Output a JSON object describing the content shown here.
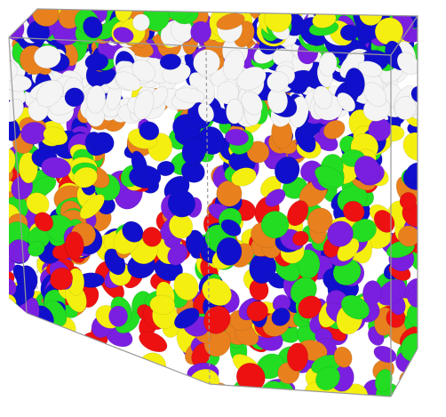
{
  "palette": {
    "white": "#f4f4f4",
    "orange": "#e8801e",
    "blue": "#1010cc",
    "green": "#22dd22",
    "purple": "#7a1fe0",
    "red": "#ee1111",
    "yellow": "#f5ef10",
    "frame": "#9a9a9a"
  },
  "layers": [
    {
      "name": "top-surface",
      "colors": [
        "blue",
        "purple",
        "green",
        "white",
        "orange",
        "yellow"
      ]
    },
    {
      "name": "orange-band",
      "colors": [
        "orange",
        "white",
        "purple",
        "blue",
        "green"
      ]
    },
    {
      "name": "white-band",
      "colors": [
        "white",
        "white",
        "white",
        "white",
        "blue"
      ]
    },
    {
      "name": "mixed-upper",
      "colors": [
        "blue",
        "orange",
        "green",
        "purple",
        "yellow",
        "blue"
      ]
    },
    {
      "name": "mixed-middle",
      "colors": [
        "red",
        "green",
        "yellow",
        "blue",
        "purple",
        "orange"
      ]
    },
    {
      "name": "mixed-lower",
      "colors": [
        "yellow",
        "red",
        "green",
        "purple",
        "blue"
      ]
    },
    {
      "name": "bottom-band",
      "colors": [
        "green",
        "purple",
        "yellow",
        "red",
        "orange"
      ]
    }
  ]
}
